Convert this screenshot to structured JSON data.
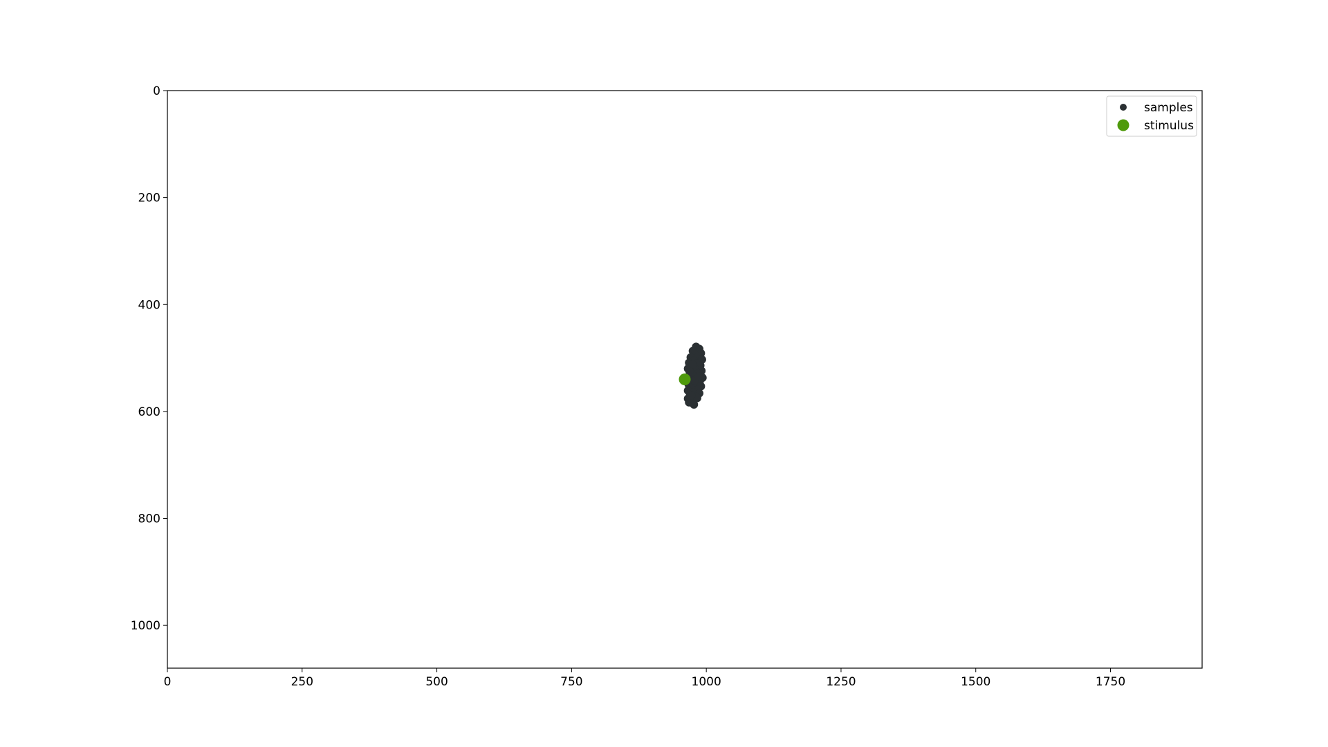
{
  "chart_data": {
    "type": "scatter",
    "title": "",
    "xlabel": "",
    "ylabel": "",
    "xlim": [
      0,
      1920
    ],
    "ylim": [
      1080,
      0
    ],
    "y_inverted": true,
    "grid": false,
    "legend": {
      "position": "top-right",
      "entries": [
        {
          "label": "samples",
          "color": "#2b3033",
          "marker": "circle-small"
        },
        {
          "label": "stimulus",
          "color": "#4f9a0c",
          "marker": "circle-large"
        }
      ]
    },
    "xticks": [
      {
        "value": 0,
        "label": "0"
      },
      {
        "value": 250,
        "label": "250"
      },
      {
        "value": 500,
        "label": "500"
      },
      {
        "value": 750,
        "label": "750"
      },
      {
        "value": 1000,
        "label": "1000"
      },
      {
        "value": 1250,
        "label": "1250"
      },
      {
        "value": 1500,
        "label": "1500"
      },
      {
        "value": 1750,
        "label": "1750"
      }
    ],
    "yticks": [
      {
        "value": 0,
        "label": "0"
      },
      {
        "value": 200,
        "label": "200"
      },
      {
        "value": 400,
        "label": "400"
      },
      {
        "value": 600,
        "label": "600"
      },
      {
        "value": 800,
        "label": "800"
      },
      {
        "value": 1000,
        "label": "1000"
      }
    ],
    "series": [
      {
        "name": "samples",
        "color": "#2b3033",
        "points": [
          [
            981,
            479
          ],
          [
            987,
            483
          ],
          [
            975,
            487
          ],
          [
            990,
            491
          ],
          [
            979,
            494
          ],
          [
            971,
            499
          ],
          [
            985,
            498
          ],
          [
            992,
            503
          ],
          [
            977,
            505
          ],
          [
            968,
            509
          ],
          [
            983,
            510
          ],
          [
            989,
            514
          ],
          [
            974,
            516
          ],
          [
            966,
            520
          ],
          [
            980,
            521
          ],
          [
            991,
            524
          ],
          [
            972,
            527
          ],
          [
            985,
            529
          ],
          [
            969,
            532
          ],
          [
            978,
            534
          ],
          [
            993,
            537
          ],
          [
            965,
            538
          ],
          [
            982,
            540
          ],
          [
            988,
            543
          ],
          [
            973,
            545
          ],
          [
            967,
            549
          ],
          [
            979,
            550
          ],
          [
            990,
            553
          ],
          [
            971,
            556
          ],
          [
            984,
            559
          ],
          [
            966,
            561
          ],
          [
            976,
            564
          ],
          [
            987,
            566
          ],
          [
            970,
            569
          ],
          [
            980,
            572
          ],
          [
            966,
            576
          ],
          [
            974,
            578
          ],
          [
            983,
            575
          ],
          [
            968,
            583
          ],
          [
            977,
            587
          ],
          [
            975,
            512
          ],
          [
            978,
            542
          ],
          [
            972,
            570
          ],
          [
            986,
            535
          ],
          [
            969,
            525
          ]
        ]
      },
      {
        "name": "stimulus",
        "color": "#4f9a0c",
        "points": [
          [
            960,
            540
          ]
        ]
      }
    ]
  }
}
